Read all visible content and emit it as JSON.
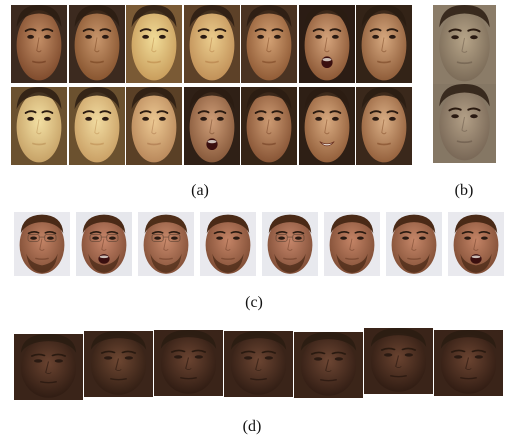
{
  "figure": {
    "captions": {
      "a": "(a)",
      "b": "(b)",
      "c": "(c)",
      "d": "(d)"
    },
    "panel_a": {
      "rows": [
        [
          {
            "light": "#c38e66",
            "dark": "#7e4a2c",
            "bg": "#3c2a1f",
            "mouth": "neutral"
          },
          {
            "light": "#c8966c",
            "dark": "#87542f",
            "bg": "#3c2a1f",
            "mouth": "neutral"
          },
          {
            "light": "#f1dc98",
            "dark": "#c89c5b",
            "bg": "#7a5a35",
            "mouth": "neutral"
          },
          {
            "light": "#ebcd8d",
            "dark": "#c08f57",
            "bg": "#5d4128",
            "mouth": "neutral"
          },
          {
            "light": "#d3a174",
            "dark": "#8f5a35",
            "bg": "#4a3322",
            "mouth": "neutral"
          },
          {
            "light": "#d5a47c",
            "dark": "#8a5634",
            "bg": "#2b1c14",
            "mouth": "open"
          },
          {
            "light": "#d6a87f",
            "dark": "#8d5b38",
            "bg": "#332317",
            "mouth": "neutral"
          }
        ],
        [
          {
            "light": "#f3e0a3",
            "dark": "#c6a166",
            "bg": "#6b512f",
            "mouth": "neutral"
          },
          {
            "light": "#f1dba0",
            "dark": "#c99f64",
            "bg": "#6b512f",
            "mouth": "neutral"
          },
          {
            "light": "#ecc892",
            "dark": "#b8875a",
            "bg": "#5a4026",
            "mouth": "neutral"
          },
          {
            "light": "#cf9e78",
            "dark": "#86583a",
            "bg": "#2f2016",
            "mouth": "open"
          },
          {
            "light": "#cd9b73",
            "dark": "#865334",
            "bg": "#352416",
            "mouth": "neutral"
          },
          {
            "light": "#d8aa80",
            "dark": "#915d39",
            "bg": "#2e1f15",
            "mouth": "smile"
          },
          {
            "light": "#d9ae85",
            "dark": "#935f3b",
            "bg": "#3a281b",
            "mouth": "neutral"
          }
        ]
      ]
    },
    "panel_b": {
      "faces": [
        {
          "light": "#b7a589",
          "dark": "#7a6a57",
          "bg": "#8b7c68",
          "mouth": "neutral"
        },
        {
          "light": "#b3a087",
          "dark": "#776655",
          "bg": "#857764",
          "mouth": "neutral"
        }
      ]
    },
    "panel_c": {
      "faces": [
        {
          "light": "#c48466",
          "dark": "#7e4c34",
          "bg": "#e9e9ee",
          "hair": "#4a2a17",
          "mouth": "neutral",
          "glasses": true
        },
        {
          "light": "#c8866a",
          "dark": "#804d36",
          "bg": "#e6e7ec",
          "hair": "#4a2a17",
          "mouth": "open",
          "glasses": true
        },
        {
          "light": "#c98a6c",
          "dark": "#824f37",
          "bg": "#e8e8ed",
          "hair": "#4f2e19",
          "mouth": "neutral",
          "glasses": true
        },
        {
          "light": "#c48466",
          "dark": "#7e4c34",
          "bg": "#e9e9ee",
          "hair": "#4a2a17",
          "mouth": "neutral",
          "glasses": false
        },
        {
          "light": "#c6866a",
          "dark": "#7f4d36",
          "bg": "#e8e9ee",
          "hair": "#4a2a17",
          "mouth": "neutral",
          "glasses": true
        },
        {
          "light": "#c48466",
          "dark": "#7e4c34",
          "bg": "#e9e9ee",
          "hair": "#4a2a17",
          "mouth": "neutral",
          "glasses": false
        },
        {
          "light": "#c68769",
          "dark": "#804e35",
          "bg": "#e8e9ee",
          "hair": "#4a2a17",
          "mouth": "neutral",
          "glasses": false
        },
        {
          "light": "#c48466",
          "dark": "#7e4c34",
          "bg": "#e9e9ee",
          "hair": "#4a2a17",
          "mouth": "open",
          "glasses": false
        }
      ]
    },
    "panel_d": {
      "faces": [
        {
          "light": "#6a4330",
          "dark": "#2e1b12",
          "bg": "#3a2419",
          "mouth": "neutral"
        },
        {
          "light": "#6e4732",
          "dark": "#301d13",
          "bg": "#3b251a",
          "mouth": "neutral"
        },
        {
          "light": "#6b4431",
          "dark": "#2e1b12",
          "bg": "#3a2419",
          "mouth": "neutral"
        },
        {
          "light": "#6c4532",
          "dark": "#2f1c13",
          "bg": "#3a2419",
          "mouth": "neutral"
        },
        {
          "light": "#6d4633",
          "dark": "#301c13",
          "bg": "#3b2519",
          "mouth": "neutral"
        },
        {
          "light": "#6a4330",
          "dark": "#2e1b12",
          "bg": "#3a2419",
          "mouth": "neutral"
        },
        {
          "light": "#6b4431",
          "dark": "#2f1b12",
          "bg": "#3a2419",
          "mouth": "neutral"
        }
      ]
    }
  }
}
